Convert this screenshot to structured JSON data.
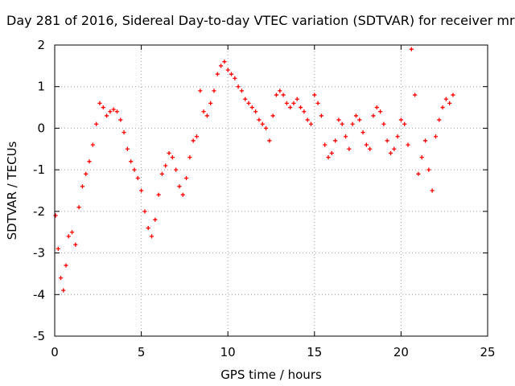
{
  "chart_data": {
    "type": "scatter",
    "title": "Day 281 of 2016, Sidereal Day-to-day VTEC variation (SDTVAR) for receiver mr",
    "xlabel": "GPS time / hours",
    "ylabel": "SDTVAR / TECUs",
    "xlim": [
      0,
      25
    ],
    "ylim": [
      -5,
      2
    ],
    "xticks": [
      0,
      5,
      10,
      15,
      20,
      25
    ],
    "yticks": [
      -5,
      -4,
      -3,
      -2,
      -1,
      0,
      1,
      2
    ],
    "grid": true,
    "legend": "none",
    "marker": "+",
    "color": "#ff0000",
    "series": [
      {
        "values_x": [
          0.05,
          0.2,
          0.35,
          0.5,
          0.65,
          0.8,
          1.0,
          1.2,
          1.4,
          1.6,
          1.8,
          2.0,
          2.2,
          2.4,
          2.6,
          2.8,
          3.0,
          3.2,
          3.4,
          3.6,
          3.8,
          4.0,
          4.2,
          4.4,
          4.6,
          4.8,
          5.0,
          5.2,
          5.4,
          5.6,
          5.8,
          6.0,
          6.2,
          6.4,
          6.6,
          6.8,
          7.0,
          7.2,
          7.4,
          7.6,
          7.8,
          8.0,
          8.2,
          8.4,
          8.6,
          8.8,
          9.0,
          9.2,
          9.4,
          9.6,
          9.8,
          10.0,
          10.2,
          10.4,
          10.6,
          10.8,
          11.0,
          11.2,
          11.4,
          11.6,
          11.8,
          12.0,
          12.2,
          12.4,
          12.6,
          12.8,
          13.0,
          13.2,
          13.4,
          13.6,
          13.8,
          14.0,
          14.2,
          14.4,
          14.6,
          14.8,
          15.0,
          15.2,
          15.4,
          15.6,
          15.8,
          16.0,
          16.2,
          16.4,
          16.6,
          16.8,
          17.0,
          17.2,
          17.4,
          17.6,
          17.8,
          18.0,
          18.2,
          18.4,
          18.6,
          18.8,
          19.0,
          19.2,
          19.4,
          19.6,
          19.8,
          20.0,
          20.2,
          20.4,
          20.6,
          20.8,
          21.0,
          21.2,
          21.4,
          21.6,
          21.8,
          22.0,
          22.2,
          22.4,
          22.6,
          22.8,
          23.0
        ],
        "values_y": [
          -2.1,
          -2.9,
          -3.6,
          -3.9,
          -3.3,
          -2.6,
          -2.5,
          -2.8,
          -1.9,
          -1.4,
          -1.1,
          -0.8,
          -0.4,
          0.1,
          0.6,
          0.5,
          0.3,
          0.4,
          0.45,
          0.4,
          0.2,
          -0.1,
          -0.5,
          -0.8,
          -1.0,
          -1.2,
          -1.5,
          -2.0,
          -2.4,
          -2.6,
          -2.2,
          -1.6,
          -1.1,
          -0.9,
          -0.6,
          -0.7,
          -1.0,
          -1.4,
          -1.6,
          -1.2,
          -0.7,
          -0.3,
          -0.2,
          0.9,
          0.4,
          0.3,
          0.6,
          0.9,
          1.3,
          1.5,
          1.6,
          1.4,
          1.3,
          1.2,
          1.0,
          0.9,
          0.7,
          0.6,
          0.5,
          0.4,
          0.2,
          0.1,
          0.0,
          -0.3,
          0.3,
          0.8,
          0.9,
          0.8,
          0.6,
          0.5,
          0.6,
          0.7,
          0.5,
          0.4,
          0.2,
          0.1,
          0.8,
          0.6,
          0.3,
          -0.4,
          -0.7,
          -0.6,
          -0.3,
          0.2,
          0.1,
          -0.2,
          -0.5,
          0.1,
          0.3,
          0.2,
          -0.1,
          -0.4,
          -0.5,
          0.3,
          0.5,
          0.4,
          0.1,
          -0.3,
          -0.6,
          -0.5,
          -0.2,
          0.2,
          0.1,
          -0.4,
          1.9,
          0.8,
          -1.1,
          -0.7,
          -0.3,
          -1.0,
          -1.5,
          -0.2,
          0.2,
          0.5,
          0.7,
          0.6,
          0.8
        ]
      }
    ]
  }
}
